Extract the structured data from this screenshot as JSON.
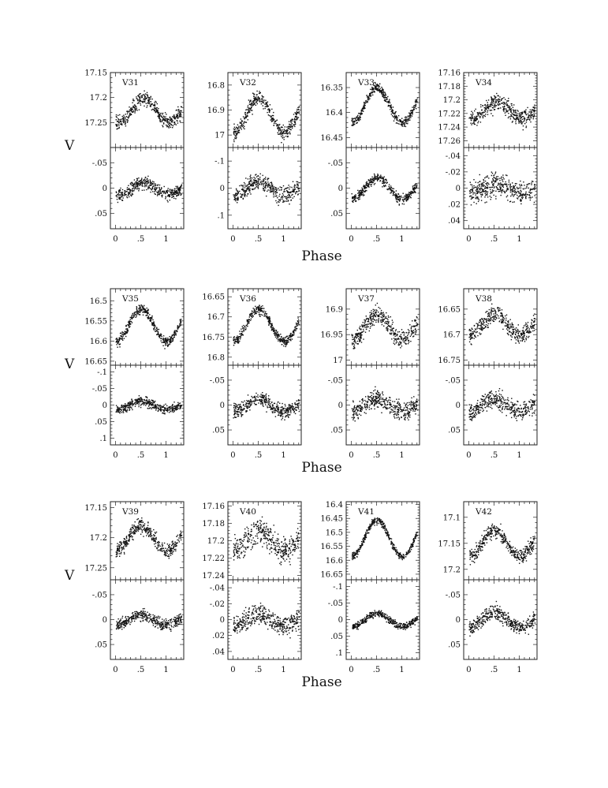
{
  "figure": {
    "y_axis_label": "V",
    "x_axis_label": "Phase",
    "x_tick_labels": [
      "0",
      ".5",
      "1"
    ]
  },
  "chart_data": [
    {
      "type": "scatter",
      "label": "V31",
      "x_axis": "Phase",
      "xlim": [
        -0.1,
        1.35
      ],
      "top_panel": {
        "ylabel": "V",
        "ylim": [
          17.15,
          17.3
        ],
        "ytick_labels": [
          "17.15",
          "17.2",
          "17.25"
        ],
        "yticks": [
          17.15,
          17.2,
          17.25
        ],
        "inverted": true,
        "curve": {
          "mean": 17.225,
          "amplitude": 0.025,
          "phase_offset": 0.05,
          "scatter": 0.012
        }
      },
      "bottom_panel": {
        "ylim": [
          -0.08,
          0.08
        ],
        "ytick_labels": [
          "-.05",
          "0",
          ".05"
        ],
        "yticks": [
          -0.05,
          0,
          0.05
        ],
        "inverted": true,
        "curve": {
          "mean": 0,
          "amplitude": 0.012,
          "phase_offset": 0.05,
          "scatter": 0.01
        }
      }
    },
    {
      "type": "scatter",
      "label": "V32",
      "x_axis": "Phase",
      "xlim": [
        -0.1,
        1.35
      ],
      "top_panel": {
        "ylim": [
          16.75,
          17.05
        ],
        "ytick_labels": [
          "16.8",
          "16.9",
          "17"
        ],
        "yticks": [
          16.8,
          16.9,
          17.0
        ],
        "inverted": true,
        "curve": {
          "mean": 16.92,
          "amplitude": 0.07,
          "phase_offset": 0.0,
          "scatter": 0.025
        }
      },
      "bottom_panel": {
        "ylim": [
          -0.15,
          0.15
        ],
        "ytick_labels": [
          "-.1",
          "0",
          ".1"
        ],
        "yticks": [
          -0.1,
          0,
          0.1
        ],
        "inverted": true,
        "curve": {
          "mean": 0,
          "amplitude": 0.025,
          "phase_offset": 0.0,
          "scatter": 0.025
        }
      }
    },
    {
      "type": "scatter",
      "label": "V33",
      "x_axis": "Phase",
      "xlim": [
        -0.1,
        1.35
      ],
      "top_panel": {
        "ylim": [
          16.32,
          16.47
        ],
        "ytick_labels": [
          "16.35",
          "16.4",
          "16.45"
        ],
        "yticks": [
          16.35,
          16.4,
          16.45
        ],
        "inverted": true,
        "curve": {
          "mean": 16.385,
          "amplitude": 0.035,
          "phase_offset": 0.0,
          "scatter": 0.008
        }
      },
      "bottom_panel": {
        "ylim": [
          -0.08,
          0.08
        ],
        "ytick_labels": [
          "-.05",
          "0",
          ".05"
        ],
        "yticks": [
          -0.05,
          0,
          0.05
        ],
        "inverted": true,
        "curve": {
          "mean": 0,
          "amplitude": 0.02,
          "phase_offset": 0.0,
          "scatter": 0.008
        }
      }
    },
    {
      "type": "scatter",
      "label": "V34",
      "x_axis": "Phase",
      "xlim": [
        -0.1,
        1.35
      ],
      "top_panel": {
        "ylim": [
          17.16,
          17.27
        ],
        "ytick_labels": [
          "17.16",
          "17.18",
          "17.2",
          "17.22",
          "17.24",
          "17.26"
        ],
        "yticks": [
          17.16,
          17.18,
          17.2,
          17.22,
          17.24,
          17.26
        ],
        "inverted": true,
        "curve": {
          "mean": 17.215,
          "amplitude": 0.012,
          "phase_offset": 0.05,
          "scatter": 0.01
        }
      },
      "bottom_panel": {
        "ylim": [
          -0.05,
          0.05
        ],
        "ytick_labels": [
          "-.04",
          "-.02",
          "0",
          ".02",
          ".04"
        ],
        "yticks": [
          -0.04,
          -0.02,
          0,
          0.02,
          0.04
        ],
        "inverted": true,
        "curve": {
          "mean": 0,
          "amplitude": 0.005,
          "phase_offset": 0.05,
          "scatter": 0.012
        }
      }
    },
    {
      "type": "scatter",
      "label": "V35",
      "x_axis": "Phase",
      "xlim": [
        -0.1,
        1.35
      ],
      "top_panel": {
        "ylim": [
          16.47,
          16.66
        ],
        "ytick_labels": [
          "16.5",
          "16.55",
          "16.6",
          "16.65"
        ],
        "yticks": [
          16.5,
          16.55,
          16.6,
          16.65
        ],
        "inverted": true,
        "curve": {
          "mean": 16.56,
          "amplitude": 0.04,
          "phase_offset": 0.0,
          "scatter": 0.01
        }
      },
      "bottom_panel": {
        "ylim": [
          -0.12,
          0.12
        ],
        "ytick_labels": [
          "-.1",
          "-.05",
          "0",
          ".05",
          ".1"
        ],
        "yticks": [
          -0.1,
          -0.05,
          0,
          0.05,
          0.1
        ],
        "inverted": true,
        "curve": {
          "mean": 0,
          "amplitude": 0.012,
          "phase_offset": 0.0,
          "scatter": 0.012
        }
      }
    },
    {
      "type": "scatter",
      "label": "V36",
      "x_axis": "Phase",
      "xlim": [
        -0.1,
        1.35
      ],
      "top_panel": {
        "ylim": [
          16.63,
          16.82
        ],
        "ytick_labels": [
          "16.65",
          "16.7",
          "16.75",
          "16.8"
        ],
        "yticks": [
          16.65,
          16.7,
          16.75,
          16.8
        ],
        "inverted": true,
        "curve": {
          "mean": 16.72,
          "amplitude": 0.04,
          "phase_offset": 0.0,
          "scatter": 0.01
        }
      },
      "bottom_panel": {
        "ylim": [
          -0.08,
          0.08
        ],
        "ytick_labels": [
          "-.05",
          "0",
          ".05"
        ],
        "yticks": [
          -0.05,
          0,
          0.05
        ],
        "inverted": true,
        "curve": {
          "mean": 0,
          "amplitude": 0.012,
          "phase_offset": 0.0,
          "scatter": 0.012
        }
      }
    },
    {
      "type": "scatter",
      "label": "V37",
      "x_axis": "Phase",
      "xlim": [
        -0.1,
        1.35
      ],
      "top_panel": {
        "ylim": [
          16.86,
          17.01
        ],
        "ytick_labels": [
          "16.9",
          "16.95",
          "17"
        ],
        "yticks": [
          16.9,
          16.95,
          17.0
        ],
        "inverted": true,
        "curve": {
          "mean": 16.935,
          "amplitude": 0.025,
          "phase_offset": 0.0,
          "scatter": 0.015
        }
      },
      "bottom_panel": {
        "ylim": [
          -0.08,
          0.08
        ],
        "ytick_labels": [
          "-.05",
          "0",
          ".05"
        ],
        "yticks": [
          -0.05,
          0,
          0.05
        ],
        "inverted": true,
        "curve": {
          "mean": 0,
          "amplitude": 0.012,
          "phase_offset": 0.0,
          "scatter": 0.015
        }
      }
    },
    {
      "type": "scatter",
      "label": "V38",
      "x_axis": "Phase",
      "xlim": [
        -0.1,
        1.35
      ],
      "top_panel": {
        "ylim": [
          16.61,
          16.76
        ],
        "ytick_labels": [
          "16.65",
          "16.7",
          "16.75"
        ],
        "yticks": [
          16.65,
          16.7,
          16.75
        ],
        "inverted": true,
        "curve": {
          "mean": 16.68,
          "amplitude": 0.02,
          "phase_offset": 0.0,
          "scatter": 0.015
        }
      },
      "bottom_panel": {
        "ylim": [
          -0.08,
          0.08
        ],
        "ytick_labels": [
          "-.05",
          "0",
          ".05"
        ],
        "yticks": [
          -0.05,
          0,
          0.05
        ],
        "inverted": true,
        "curve": {
          "mean": 0,
          "amplitude": 0.012,
          "phase_offset": 0.0,
          "scatter": 0.015
        }
      }
    },
    {
      "type": "scatter",
      "label": "V39",
      "x_axis": "Phase",
      "xlim": [
        -0.1,
        1.35
      ],
      "top_panel": {
        "ylim": [
          17.14,
          17.27
        ],
        "ytick_labels": [
          "17.15",
          "17.2",
          "17.25"
        ],
        "yticks": [
          17.15,
          17.2,
          17.25
        ],
        "inverted": true,
        "curve": {
          "mean": 17.2,
          "amplitude": 0.02,
          "phase_offset": 0.0,
          "scatter": 0.01
        }
      },
      "bottom_panel": {
        "ylim": [
          -0.08,
          0.08
        ],
        "ytick_labels": [
          "-.05",
          "0",
          ".05"
        ],
        "yticks": [
          -0.05,
          0,
          0.05
        ],
        "inverted": true,
        "curve": {
          "mean": 0,
          "amplitude": 0.01,
          "phase_offset": 0.0,
          "scatter": 0.01
        }
      }
    },
    {
      "type": "scatter",
      "label": "V40",
      "x_axis": "Phase",
      "xlim": [
        -0.1,
        1.35
      ],
      "top_panel": {
        "ylim": [
          17.155,
          17.245
        ],
        "ytick_labels": [
          "17.16",
          "17.18",
          "17.2",
          "17.22",
          "17.24"
        ],
        "yticks": [
          17.16,
          17.18,
          17.2,
          17.22,
          17.24
        ],
        "inverted": true,
        "curve": {
          "mean": 17.2,
          "amplitude": 0.012,
          "phase_offset": 0.0,
          "scatter": 0.012
        }
      },
      "bottom_panel": {
        "ylim": [
          -0.05,
          0.05
        ],
        "ytick_labels": [
          "-.04",
          "-.02",
          "0",
          ".02",
          ".04"
        ],
        "yticks": [
          -0.04,
          -0.02,
          0,
          0.02,
          0.04
        ],
        "inverted": true,
        "curve": {
          "mean": 0,
          "amplitude": 0.008,
          "phase_offset": 0.0,
          "scatter": 0.01
        }
      }
    },
    {
      "type": "scatter",
      "label": "V41",
      "x_axis": "Phase",
      "xlim": [
        -0.1,
        1.35
      ],
      "top_panel": {
        "ylim": [
          16.39,
          16.67
        ],
        "ytick_labels": [
          "16.4",
          "16.45",
          "16.5",
          "16.55",
          "16.6",
          "16.65"
        ],
        "yticks": [
          16.4,
          16.45,
          16.5,
          16.55,
          16.6,
          16.65
        ],
        "inverted": true,
        "curve": {
          "mean": 16.52,
          "amplitude": 0.065,
          "phase_offset": 0.0,
          "scatter": 0.01
        }
      },
      "bottom_panel": {
        "ylim": [
          -0.12,
          0.12
        ],
        "ytick_labels": [
          "-.1",
          "-.05",
          "0",
          ".05",
          ".1"
        ],
        "yticks": [
          -0.1,
          -0.05,
          0,
          0.05,
          0.1
        ],
        "inverted": true,
        "curve": {
          "mean": 0,
          "amplitude": 0.02,
          "phase_offset": 0.0,
          "scatter": 0.008
        }
      }
    },
    {
      "type": "scatter",
      "label": "V42",
      "x_axis": "Phase",
      "xlim": [
        -0.1,
        1.35
      ],
      "top_panel": {
        "ylim": [
          17.07,
          17.22
        ],
        "ytick_labels": [
          "17.1",
          "17.15",
          "17.2"
        ],
        "yticks": [
          17.1,
          17.15,
          17.2
        ],
        "inverted": true,
        "curve": {
          "mean": 17.15,
          "amplitude": 0.025,
          "phase_offset": 0.0,
          "scatter": 0.012
        }
      },
      "bottom_panel": {
        "ylim": [
          -0.08,
          0.08
        ],
        "ytick_labels": [
          "-.05",
          "0",
          ".05"
        ],
        "yticks": [
          -0.05,
          0,
          0.05
        ],
        "inverted": true,
        "curve": {
          "mean": 0,
          "amplitude": 0.015,
          "phase_offset": 0.0,
          "scatter": 0.012
        }
      }
    }
  ]
}
